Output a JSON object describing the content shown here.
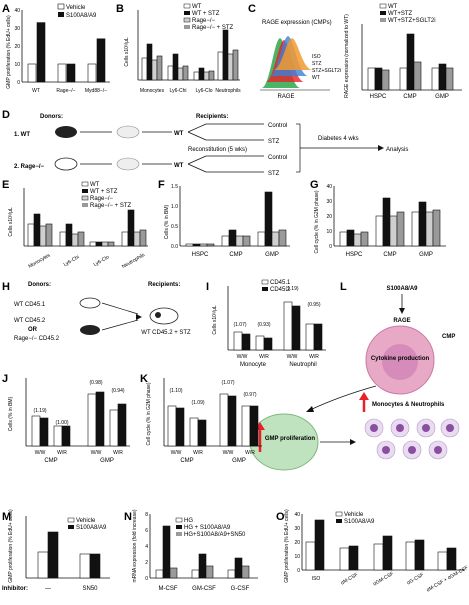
{
  "panels": {
    "A": {
      "label": "A",
      "ylabel": "GMP proliferation (% EdU+ cells)",
      "legend": [
        "Vehicle",
        "S100A8/A9"
      ],
      "categories": [
        "WT",
        "Rage−/−",
        "Myd88−/−"
      ],
      "vehicle": [
        10,
        10,
        10
      ],
      "s100": [
        33,
        10,
        24
      ],
      "ylim": [
        0,
        40
      ],
      "yticks": [
        "0",
        "10",
        "20",
        "30",
        "40"
      ]
    },
    "B": {
      "label": "B",
      "ylabel": "Cells x10³/μL",
      "legend": [
        "WT",
        "WT + STZ",
        "Rage−/−",
        "Rage−/− + STZ"
      ],
      "categories": [
        "Monocytes",
        "Ly6-Chi",
        "Ly6-Clo",
        "Neutrophils"
      ]
    },
    "C": {
      "label": "C",
      "title": "RAGE expression (CMPs)",
      "flow_labels": [
        "ISO",
        "STZ",
        "STZ+SGLT2i",
        "WT"
      ],
      "xlabel": "RAGE",
      "ylabel": "RAGE expression (normalized to WT)",
      "legend": [
        "WT",
        "WT+STZ",
        "WT+STZ+SGLT2i"
      ],
      "categories": [
        "HSPC",
        "CMP",
        "GMP"
      ],
      "yticks": [
        "0.0",
        "0.5",
        "1.0",
        "1.5",
        "2.0",
        "2.5",
        "3.0"
      ]
    },
    "D": {
      "label": "D",
      "donor1": "1. WT",
      "donor2": "2. Rage−/−",
      "donors": "Donors:",
      "recipients": "Recipients:",
      "wt1": "WT",
      "wt2": "WT",
      "control1": "Control",
      "stz1": "STZ",
      "control2": "Control",
      "stz2": "STZ",
      "recon": "Reconstitution (5 wks)",
      "diabetes": "Diabetes 4 wks",
      "analysis": "Analysis"
    },
    "E": {
      "label": "E",
      "ylabel": "Cells x10³/μL",
      "legend": [
        "WT",
        "WT + STZ",
        "Rage−/−",
        "Rage−/− + STZ"
      ],
      "categories": [
        "Monocytes",
        "Ly6-Chi",
        "Ly6-Clo",
        "Neutrophils"
      ]
    },
    "F": {
      "label": "F",
      "ylabel": "Cells (% in BM)",
      "categories": [
        "HSPC",
        "CMP",
        "GMP"
      ],
      "yticks": [
        "0.0",
        "0.5",
        "1.0",
        "1.5"
      ]
    },
    "G": {
      "label": "G",
      "ylabel": "Cell cycle (% in G2M phase)",
      "categories": [
        "HSPC",
        "CMP",
        "GMP"
      ],
      "yticks": [
        "0",
        "10",
        "20",
        "30",
        "40"
      ]
    },
    "H": {
      "label": "H",
      "donors": "Donors:",
      "recipients": "Recipients:",
      "d1": "WT CD45.1",
      "d2": "WT CD45.2",
      "or": "OR",
      "d3": "Rage−/− CD45.2",
      "recipient": "WT CD45.2 + STZ"
    },
    "I": {
      "label": "I",
      "ylabel": "Cells x10³/μL",
      "legend": [
        "CD45.1",
        "CD45.2"
      ],
      "xticks": [
        "W/W",
        "W/R",
        "W/W",
        "W/R"
      ],
      "groups": [
        "Monocyte",
        "Neutrophil"
      ],
      "ratios": [
        "(1.07)",
        "(0.93)",
        "(1.19)",
        "(0.95)"
      ]
    },
    "J": {
      "label": "J",
      "ylabel": "Cells (% in BM)",
      "xticks": [
        "W/W",
        "W/R",
        "W/W",
        "W/R"
      ],
      "groups": [
        "CMP",
        "GMP"
      ],
      "ratios": [
        "(1.19)",
        "(1.00)",
        "(0.98)",
        "(0.94)"
      ]
    },
    "K": {
      "label": "K",
      "ylabel": "Cell cycle (% in G2M phase)",
      "xticks": [
        "W/W",
        "W/R",
        "W/W",
        "W/R"
      ],
      "groups": [
        "CMP",
        "GMP"
      ],
      "ratios": [
        "(1.10)",
        "(1.09)",
        "(1.07)",
        "(0.97)"
      ]
    },
    "L": {
      "label": "L",
      "top": "S100A8/A9",
      "rage": "RAGE",
      "cmp": "CMP",
      "cytokine": "Cytokine production",
      "gmp": "GMP proliferation",
      "out": "Monocytes & Neutrophils"
    },
    "M": {
      "label": "M",
      "ylabel": "GMP proliferation (% EdU+ cells)",
      "legend": [
        "Vehicle",
        "S100A8/A9"
      ],
      "inhibitor": "Inhibitor:",
      "xticks": [
        "—",
        "SN50"
      ],
      "yticks": [
        "0",
        "10",
        "20",
        "30",
        "40",
        "50"
      ]
    },
    "N": {
      "label": "N",
      "ylabel": "mRNA expression (fold increase)",
      "legend": [
        "HG",
        "HG + S100A8/A9",
        "HG+S100A8/A9+SN50"
      ],
      "categories": [
        "M-CSF",
        "GM-CSF",
        "G-CSF"
      ],
      "yticks": [
        "0",
        "2",
        "4",
        "6",
        "8"
      ]
    },
    "O": {
      "label": "O",
      "ylabel": "GMP proliferation (% EdU+ cells)",
      "legend": [
        "Vehicle",
        "S100A8/A9"
      ],
      "categories": [
        "ISO",
        "αM-CSF",
        "αGM-CSF",
        "αG-CSF",
        "αM-CSF + αGM-CSF"
      ],
      "yticks": [
        "0",
        "10",
        "20",
        "30",
        "40"
      ]
    }
  },
  "colors": {
    "black": "#111111",
    "gray": "#9a9a9a",
    "lightgray": "#cfcfcf",
    "white": "#ffffff",
    "red": "#e8202a",
    "pink": "#e8a9c7",
    "green": "#bfe3bf"
  }
}
